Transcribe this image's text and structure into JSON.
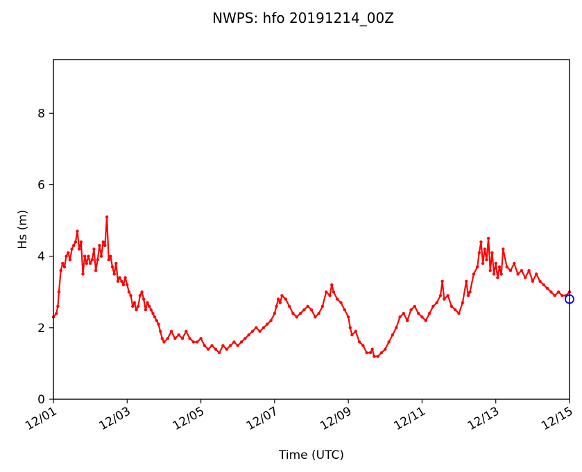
{
  "chart_data": {
    "type": "line",
    "title": "NWPS: hfo 20191214_00Z",
    "xlabel": "Time (UTC)",
    "ylabel": "Hs (m)",
    "x_unit": "days since 12/01 00Z",
    "xlim": [
      0,
      14
    ],
    "ylim": [
      0,
      9.5
    ],
    "x_ticks": [
      {
        "value": 0,
        "label": "12/01"
      },
      {
        "value": 2,
        "label": "12/03"
      },
      {
        "value": 4,
        "label": "12/05"
      },
      {
        "value": 6,
        "label": "12/07"
      },
      {
        "value": 8,
        "label": "12/09"
      },
      {
        "value": 10,
        "label": "12/11"
      },
      {
        "value": 12,
        "label": "12/13"
      },
      {
        "value": 14,
        "label": "12/15"
      }
    ],
    "y_ticks": [
      {
        "value": 0,
        "label": "0"
      },
      {
        "value": 2,
        "label": "2"
      },
      {
        "value": 4,
        "label": "4"
      },
      {
        "value": 6,
        "label": "6"
      },
      {
        "value": 8,
        "label": "8"
      }
    ],
    "grid": false,
    "colors": {
      "series": "#ff0000",
      "marker": "#0000ff"
    },
    "series": [
      {
        "name": "",
        "style": "red line with dot markers",
        "points": [
          [
            0.0,
            2.3
          ],
          [
            0.08,
            2.4
          ],
          [
            0.12,
            2.6
          ],
          [
            0.15,
            3.0
          ],
          [
            0.2,
            3.6
          ],
          [
            0.25,
            3.8
          ],
          [
            0.3,
            3.7
          ],
          [
            0.35,
            4.0
          ],
          [
            0.4,
            4.1
          ],
          [
            0.45,
            3.9
          ],
          [
            0.5,
            4.2
          ],
          [
            0.55,
            4.3
          ],
          [
            0.6,
            4.4
          ],
          [
            0.65,
            4.7
          ],
          [
            0.7,
            4.2
          ],
          [
            0.75,
            4.4
          ],
          [
            0.8,
            3.5
          ],
          [
            0.85,
            4.0
          ],
          [
            0.9,
            3.8
          ],
          [
            0.95,
            4.0
          ],
          [
            1.0,
            3.8
          ],
          [
            1.05,
            3.9
          ],
          [
            1.1,
            4.2
          ],
          [
            1.15,
            3.6
          ],
          [
            1.2,
            3.9
          ],
          [
            1.25,
            4.3
          ],
          [
            1.3,
            4.0
          ],
          [
            1.35,
            4.4
          ],
          [
            1.4,
            4.3
          ],
          [
            1.45,
            5.1
          ],
          [
            1.5,
            3.9
          ],
          [
            1.55,
            4.0
          ],
          [
            1.6,
            3.7
          ],
          [
            1.65,
            3.5
          ],
          [
            1.7,
            3.8
          ],
          [
            1.75,
            3.3
          ],
          [
            1.8,
            3.4
          ],
          [
            1.85,
            3.3
          ],
          [
            1.9,
            3.2
          ],
          [
            1.95,
            3.4
          ],
          [
            2.0,
            3.2
          ],
          [
            2.05,
            3.0
          ],
          [
            2.1,
            2.9
          ],
          [
            2.15,
            2.6
          ],
          [
            2.2,
            2.7
          ],
          [
            2.25,
            2.5
          ],
          [
            2.3,
            2.6
          ],
          [
            2.35,
            2.9
          ],
          [
            2.4,
            3.0
          ],
          [
            2.45,
            2.8
          ],
          [
            2.5,
            2.5
          ],
          [
            2.55,
            2.7
          ],
          [
            2.6,
            2.6
          ],
          [
            2.65,
            2.5
          ],
          [
            2.7,
            2.4
          ],
          [
            2.75,
            2.3
          ],
          [
            2.8,
            2.2
          ],
          [
            2.85,
            2.1
          ],
          [
            2.9,
            1.9
          ],
          [
            2.95,
            1.7
          ],
          [
            3.0,
            1.6
          ],
          [
            3.1,
            1.7
          ],
          [
            3.2,
            1.9
          ],
          [
            3.3,
            1.7
          ],
          [
            3.4,
            1.8
          ],
          [
            3.5,
            1.7
          ],
          [
            3.6,
            1.9
          ],
          [
            3.7,
            1.7
          ],
          [
            3.8,
            1.6
          ],
          [
            3.9,
            1.6
          ],
          [
            4.0,
            1.7
          ],
          [
            4.1,
            1.5
          ],
          [
            4.2,
            1.4
          ],
          [
            4.3,
            1.5
          ],
          [
            4.4,
            1.4
          ],
          [
            4.5,
            1.3
          ],
          [
            4.6,
            1.5
          ],
          [
            4.7,
            1.4
          ],
          [
            4.8,
            1.5
          ],
          [
            4.9,
            1.6
          ],
          [
            5.0,
            1.5
          ],
          [
            5.1,
            1.6
          ],
          [
            5.2,
            1.7
          ],
          [
            5.3,
            1.8
          ],
          [
            5.4,
            1.9
          ],
          [
            5.5,
            2.0
          ],
          [
            5.6,
            1.9
          ],
          [
            5.7,
            2.0
          ],
          [
            5.8,
            2.1
          ],
          [
            5.9,
            2.2
          ],
          [
            6.0,
            2.4
          ],
          [
            6.05,
            2.6
          ],
          [
            6.1,
            2.8
          ],
          [
            6.15,
            2.7
          ],
          [
            6.2,
            2.9
          ],
          [
            6.3,
            2.8
          ],
          [
            6.4,
            2.6
          ],
          [
            6.5,
            2.4
          ],
          [
            6.6,
            2.3
          ],
          [
            6.7,
            2.4
          ],
          [
            6.8,
            2.5
          ],
          [
            6.9,
            2.6
          ],
          [
            7.0,
            2.5
          ],
          [
            7.1,
            2.3
          ],
          [
            7.2,
            2.4
          ],
          [
            7.3,
            2.6
          ],
          [
            7.4,
            3.0
          ],
          [
            7.5,
            2.9
          ],
          [
            7.55,
            3.2
          ],
          [
            7.6,
            3.0
          ],
          [
            7.7,
            2.8
          ],
          [
            7.8,
            2.7
          ],
          [
            7.9,
            2.5
          ],
          [
            8.0,
            2.3
          ],
          [
            8.05,
            2.0
          ],
          [
            8.1,
            1.8
          ],
          [
            8.2,
            1.9
          ],
          [
            8.3,
            1.6
          ],
          [
            8.4,
            1.5
          ],
          [
            8.5,
            1.3
          ],
          [
            8.6,
            1.3
          ],
          [
            8.65,
            1.4
          ],
          [
            8.7,
            1.2
          ],
          [
            8.8,
            1.2
          ],
          [
            8.9,
            1.3
          ],
          [
            9.0,
            1.4
          ],
          [
            9.1,
            1.6
          ],
          [
            9.2,
            1.8
          ],
          [
            9.3,
            2.0
          ],
          [
            9.4,
            2.3
          ],
          [
            9.5,
            2.4
          ],
          [
            9.6,
            2.2
          ],
          [
            9.7,
            2.5
          ],
          [
            9.8,
            2.6
          ],
          [
            9.9,
            2.4
          ],
          [
            10.0,
            2.3
          ],
          [
            10.1,
            2.2
          ],
          [
            10.2,
            2.4
          ],
          [
            10.3,
            2.6
          ],
          [
            10.4,
            2.7
          ],
          [
            10.5,
            2.9
          ],
          [
            10.55,
            3.3
          ],
          [
            10.6,
            2.8
          ],
          [
            10.7,
            2.9
          ],
          [
            10.8,
            2.6
          ],
          [
            10.9,
            2.5
          ],
          [
            11.0,
            2.4
          ],
          [
            11.1,
            2.7
          ],
          [
            11.2,
            3.3
          ],
          [
            11.25,
            2.9
          ],
          [
            11.3,
            3.0
          ],
          [
            11.4,
            3.5
          ],
          [
            11.5,
            3.7
          ],
          [
            11.55,
            4.1
          ],
          [
            11.6,
            4.4
          ],
          [
            11.65,
            3.8
          ],
          [
            11.7,
            4.2
          ],
          [
            11.75,
            3.9
          ],
          [
            11.8,
            4.5
          ],
          [
            11.85,
            3.6
          ],
          [
            11.9,
            4.1
          ],
          [
            11.95,
            3.5
          ],
          [
            12.0,
            3.8
          ],
          [
            12.05,
            3.4
          ],
          [
            12.1,
            3.7
          ],
          [
            12.15,
            3.5
          ],
          [
            12.2,
            4.2
          ],
          [
            12.3,
            3.7
          ],
          [
            12.4,
            3.6
          ],
          [
            12.5,
            3.8
          ],
          [
            12.6,
            3.5
          ],
          [
            12.7,
            3.6
          ],
          [
            12.8,
            3.4
          ],
          [
            12.9,
            3.6
          ],
          [
            13.0,
            3.3
          ],
          [
            13.1,
            3.5
          ],
          [
            13.2,
            3.3
          ],
          [
            13.3,
            3.2
          ],
          [
            13.4,
            3.1
          ],
          [
            13.5,
            3.0
          ],
          [
            13.6,
            2.9
          ],
          [
            13.7,
            3.0
          ],
          [
            13.8,
            2.9
          ],
          [
            13.9,
            2.9
          ],
          [
            14.0,
            3.0
          ]
        ]
      }
    ],
    "marker_point": [
      14.0,
      2.8
    ]
  }
}
